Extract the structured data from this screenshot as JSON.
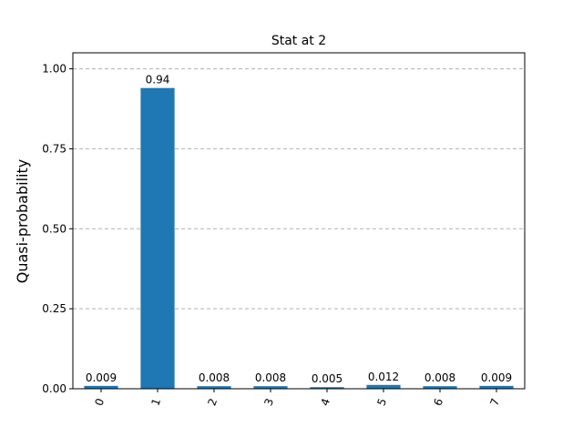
{
  "chart_data": {
    "type": "bar",
    "title": "Stat at 2",
    "xlabel": "",
    "ylabel": "Quasi-probability",
    "categories": [
      "0",
      "1",
      "2",
      "3",
      "4",
      "5",
      "6",
      "7"
    ],
    "values": [
      0.009,
      0.94,
      0.008,
      0.008,
      0.005,
      0.012,
      0.008,
      0.009
    ],
    "data_labels": [
      "0.009",
      "0.94",
      "0.008",
      "0.008",
      "0.005",
      "0.012",
      "0.008",
      "0.009"
    ],
    "yticks": [
      0.0,
      0.25,
      0.5,
      0.75,
      1.0
    ],
    "ytick_labels": [
      "0.00",
      "0.25",
      "0.50",
      "0.75",
      "1.00"
    ],
    "ylim": [
      0,
      1.05
    ],
    "grid": "horizontal-dashed",
    "bar_color": "#1f77b4",
    "grid_color": "#b0b0b0"
  }
}
